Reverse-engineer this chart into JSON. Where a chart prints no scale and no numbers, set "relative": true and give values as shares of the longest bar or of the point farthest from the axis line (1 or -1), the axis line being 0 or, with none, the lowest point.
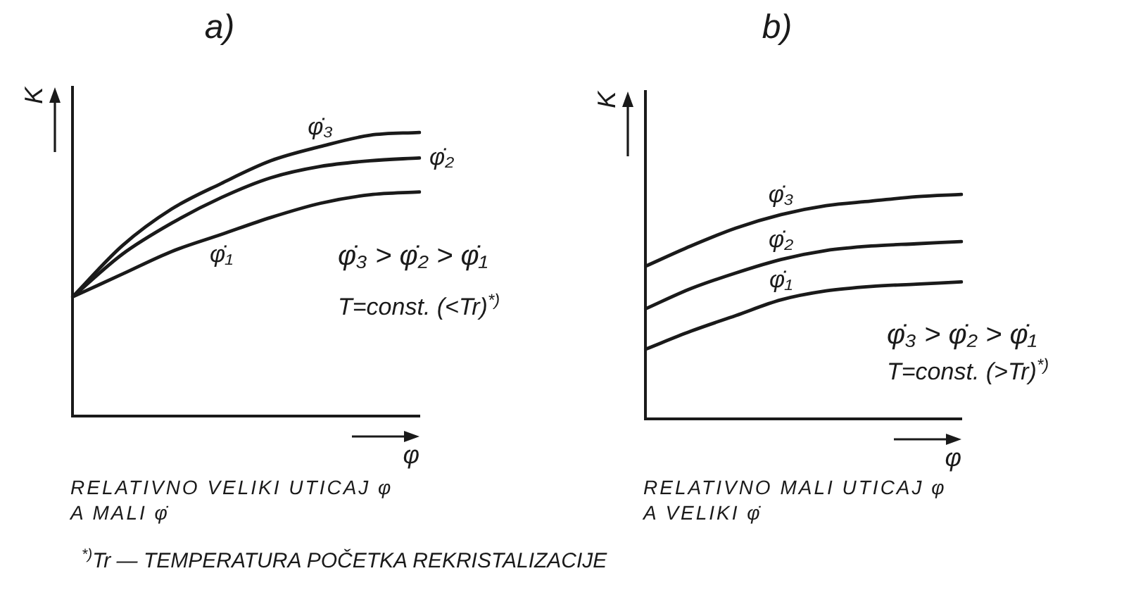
{
  "chart_data": [
    {
      "type": "line",
      "title": "a)",
      "xlabel": "φ",
      "ylabel": "K",
      "relative": true,
      "tick_labels": false,
      "categories": [
        null,
        null,
        null,
        null,
        null,
        null,
        null,
        null
      ],
      "series": [
        {
          "name": "φ̇₁",
          "color": "#1a1a1a",
          "values": [
            0.42,
            0.5,
            0.58,
            0.64,
            0.7,
            0.75,
            0.78,
            0.79
          ]
        },
        {
          "name": "φ̇₂",
          "color": "#1a1a1a",
          "values": [
            0.42,
            0.57,
            0.68,
            0.77,
            0.84,
            0.88,
            0.9,
            0.91
          ]
        },
        {
          "name": "φ̇₃",
          "color": "#1a1a1a",
          "values": [
            0.42,
            0.6,
            0.73,
            0.82,
            0.9,
            0.95,
            0.99,
            1
          ]
        }
      ],
      "annotations": [
        "φ̇₃ > φ̇₂ > φ̇₁",
        "T=const. (<Tr)$^{*)}$",
        "RELATIVNO VELIKI UTICAJ φ A MALI φ̇",
        "$^{*)}$Tr — TEMPERATURA POČETKA REKRISTALIZACIJE"
      ]
    },
    {
      "type": "line",
      "title": "b)",
      "xlabel": "φ",
      "ylabel": "K",
      "relative": true,
      "tick_labels": false,
      "categories": [
        null,
        null,
        null,
        null,
        null,
        null,
        null,
        null
      ],
      "series": [
        {
          "name": "φ̇₁",
          "color": "#1a1a1a",
          "values": [
            0.31,
            0.39,
            0.46,
            0.53,
            0.57,
            0.59,
            0.6,
            0.61
          ]
        },
        {
          "name": "φ̇₂",
          "color": "#1a1a1a",
          "values": [
            0.49,
            0.58,
            0.65,
            0.71,
            0.75,
            0.77,
            0.78,
            0.79
          ]
        },
        {
          "name": "φ̇₃",
          "color": "#1a1a1a",
          "values": [
            0.68,
            0.77,
            0.85,
            0.91,
            0.95,
            0.97,
            0.99,
            1
          ]
        }
      ],
      "annotations": [
        "φ̇₃ > φ̇₂ > φ̇₁",
        "T=const. (>Tr)$^{*)}$",
        "RELATIVNO MALI UTICAJ φ A VELIKI φ̇"
      ]
    }
  ]
}
